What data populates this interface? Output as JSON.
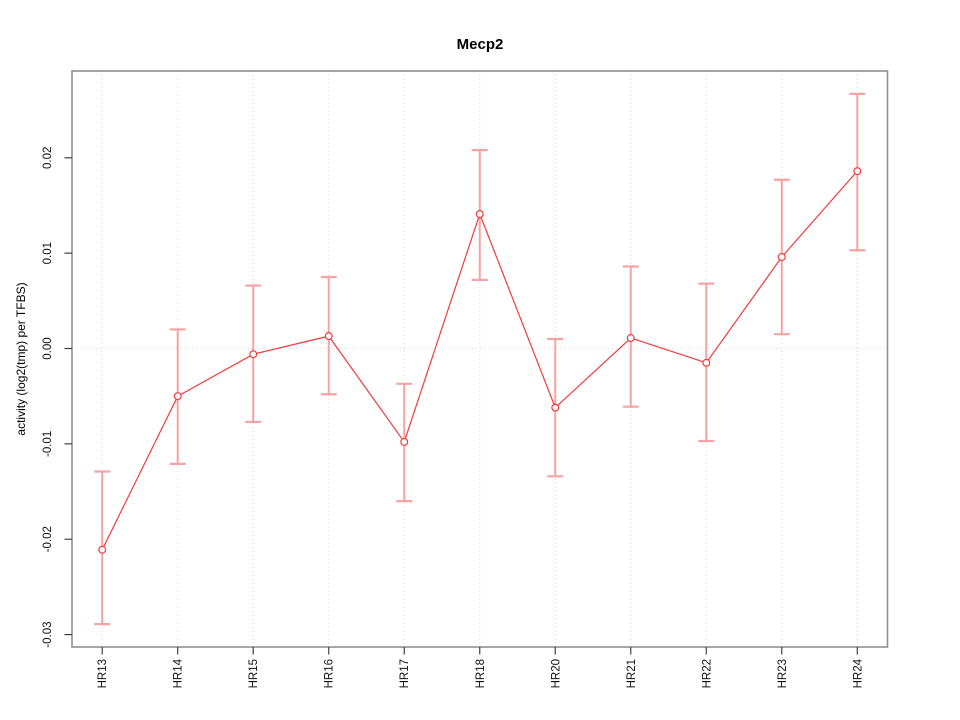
{
  "chart_data": {
    "type": "line",
    "title": "Mecp2",
    "ylabel": "activity (log2(tmp) per TFBS)",
    "xlabel": "",
    "categories": [
      "HR13",
      "HR14",
      "HR15",
      "HR16",
      "HR17",
      "HR18",
      "HR20",
      "HR21",
      "HR22",
      "HR23",
      "HR24"
    ],
    "series": [
      {
        "name": "activity",
        "marker": "open-circle",
        "values": [
          -0.0211,
          -0.005,
          -0.0006,
          0.0013,
          -0.0098,
          0.0141,
          -0.0062,
          0.0011,
          -0.0015,
          0.0096,
          0.0186
        ],
        "error_low": [
          -0.0289,
          -0.0121,
          -0.0077,
          -0.0048,
          -0.016,
          0.0072,
          -0.0134,
          -0.0061,
          -0.0097,
          0.0015,
          0.0103
        ],
        "error_high": [
          -0.0129,
          0.002,
          0.0066,
          0.0075,
          -0.0037,
          0.0208,
          0.001,
          0.0086,
          0.0068,
          0.0177,
          0.0267
        ]
      }
    ],
    "yticks": [
      -0.03,
      -0.02,
      -0.01,
      0.0,
      0.01,
      0.02
    ],
    "ytick_labels": [
      "-0.03",
      "-0.02",
      "-0.01",
      "0.00",
      "0.01",
      "0.02"
    ],
    "ylim": [
      -0.0313,
      0.0291
    ],
    "grid": {
      "vertical": "dotted at each category",
      "horizontal": "dotted line at 0 only"
    },
    "legend_position": "none",
    "colors": {
      "line": "#f23b3b",
      "error_bar": "#f7a2a2",
      "frame": "#8f8f8f",
      "tick": "#404040",
      "grid": "#d4d4d4",
      "zero_line": "#dcdcdc",
      "text": "#000000",
      "background": "#ffffff"
    }
  }
}
